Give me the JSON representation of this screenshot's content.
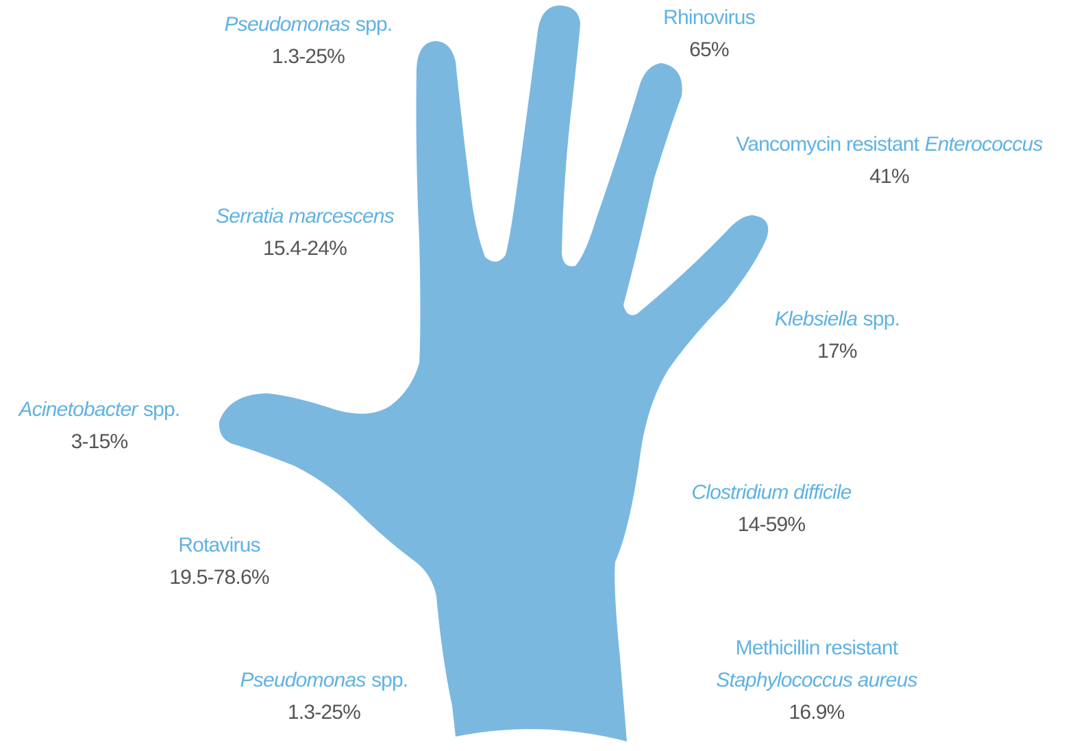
{
  "labels": [
    {
      "lines": [
        [
          {
            "text": "Pseudomonas",
            "italic": true
          },
          {
            "text": "spp.",
            "italic": false
          }
        ]
      ],
      "value": "1.3-25%"
    },
    {
      "lines": [
        [
          {
            "text": "Rhinovirus",
            "italic": false
          }
        ]
      ],
      "value": "65%"
    },
    {
      "lines": [
        [
          {
            "text": "Vancomycin resistant",
            "italic": false
          },
          {
            "text": "Enterococcus",
            "italic": true
          }
        ]
      ],
      "value": "41%"
    },
    {
      "lines": [
        [
          {
            "text": "Serratia marcescens",
            "italic": true
          }
        ]
      ],
      "value": "15.4-24%"
    },
    {
      "lines": [
        [
          {
            "text": "Klebsiella",
            "italic": true
          },
          {
            "text": "spp.",
            "italic": false
          }
        ]
      ],
      "value": "17%"
    },
    {
      "lines": [
        [
          {
            "text": "Acinetobacter",
            "italic": true
          },
          {
            "text": "spp.",
            "italic": false
          }
        ]
      ],
      "value": "3-15%"
    },
    {
      "lines": [
        [
          {
            "text": "Clostridium difficile",
            "italic": true
          }
        ]
      ],
      "value": "14-59%"
    },
    {
      "lines": [
        [
          {
            "text": "Rotavirus",
            "italic": false
          }
        ]
      ],
      "value": "19.5-78.6%"
    },
    {
      "lines": [
        [
          {
            "text": "Methicillin resistant",
            "italic": false
          }
        ],
        [
          {
            "text": "Staphylococcus aureus",
            "italic": true
          }
        ]
      ],
      "value": "16.9%"
    },
    {
      "lines": [
        [
          {
            "text": "Pseudomonas",
            "italic": true
          },
          {
            "text": "spp.",
            "italic": false
          }
        ]
      ],
      "value": "1.3-25%"
    }
  ]
}
